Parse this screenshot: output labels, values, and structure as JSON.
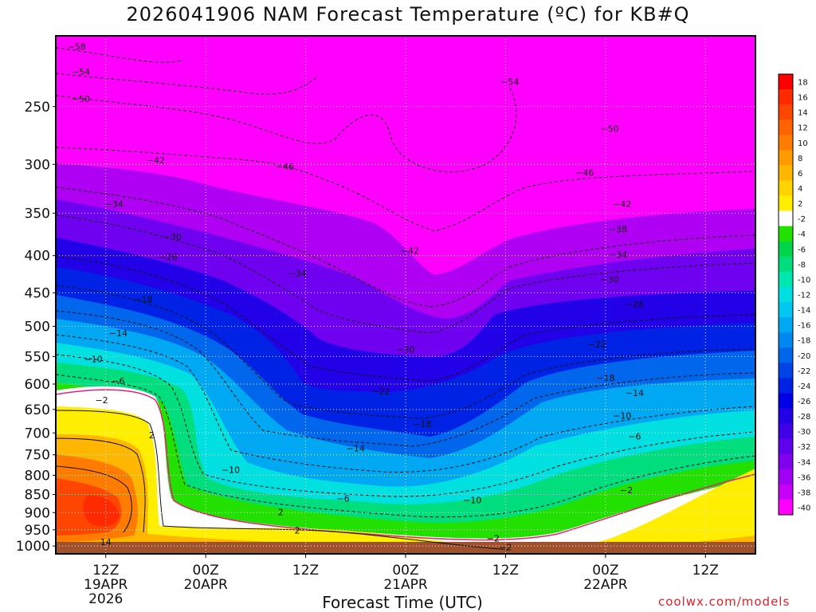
{
  "title": "2026041906 NAM Forecast Temperature (ºC) for KB#Q",
  "xlabel": "Forecast Time (UTC)",
  "credit": "coolwx.com/models",
  "chart_data": {
    "type": "heatmap",
    "title": "2026041906 NAM Forecast Temperature (ºC) for KB#Q",
    "xlabel": "Forecast Time (UTC)",
    "ylabel": "",
    "y_scale": "log",
    "y_reversed": true,
    "ylim": [
      1025,
      200
    ],
    "y_ticks": [
      250,
      300,
      350,
      400,
      450,
      500,
      550,
      600,
      650,
      700,
      750,
      800,
      850,
      900,
      950,
      1000
    ],
    "x_ticks": [
      {
        "label": "12Z",
        "sub": [
          "19APR",
          "2026"
        ],
        "hour": 6
      },
      {
        "label": "00Z",
        "sub": [
          "20APR"
        ],
        "hour": 18
      },
      {
        "label": "12Z",
        "sub": [],
        "hour": 30
      },
      {
        "label": "00Z",
        "sub": [
          "21APR"
        ],
        "hour": 42
      },
      {
        "label": "12Z",
        "sub": [],
        "hour": 54
      },
      {
        "label": "00Z",
        "sub": [
          "22APR"
        ],
        "hour": 66
      },
      {
        "label": "12Z",
        "sub": [],
        "hour": 78
      }
    ],
    "xlim_hours": [
      0,
      84
    ],
    "grid": "dotted",
    "colorbar": {
      "labels": [
        "18",
        "16",
        "14",
        "12",
        "10",
        "8",
        "6",
        "4",
        "2",
        "-2",
        "-4",
        "-6",
        "-8",
        "-10",
        "-12",
        "-14",
        "-16",
        "-18",
        "-20",
        "-22",
        "-24",
        "-26",
        "-28",
        "-30",
        "-32",
        "-34",
        "-36",
        "-38",
        "-40"
      ],
      "colors": [
        "#ff0000",
        "#ff2a00",
        "#ff4600",
        "#ff6200",
        "#ff7c00",
        "#ff9a00",
        "#ffb600",
        "#ffd400",
        "#ffee00",
        "#ffffff",
        "#22e000",
        "#00d54a",
        "#00dd7c",
        "#00e8b0",
        "#00e0e0",
        "#00c8f0",
        "#00a8f4",
        "#0088f0",
        "#0066ec",
        "#0044e8",
        "#0022e4",
        "#0000e8",
        "#2200e8",
        "#4000e8",
        "#6000ec",
        "#8000f0",
        "#a000f4",
        "#c800f8",
        "#ff00ff"
      ]
    },
    "isotherm_levels": [
      -58,
      -54,
      -50,
      -46,
      -42,
      -38,
      -34,
      -30,
      -26,
      -22,
      -18,
      -14,
      -10,
      -6,
      -2,
      2,
      6,
      10,
      14
    ],
    "labels": [
      {
        "text": "-58",
        "hour": 2.5,
        "p": 207
      },
      {
        "text": "-54",
        "hour": 3,
        "p": 224
      },
      {
        "text": "-50",
        "hour": 3,
        "p": 244
      },
      {
        "text": "-54",
        "hour": 54.5,
        "p": 231
      },
      {
        "text": "-50",
        "hour": 66.5,
        "p": 268
      },
      {
        "text": "-46",
        "hour": 27.5,
        "p": 302
      },
      {
        "text": "-46",
        "hour": 63.5,
        "p": 308
      },
      {
        "text": "-42",
        "hour": 12,
        "p": 296
      },
      {
        "text": "-42",
        "hour": 42.5,
        "p": 394
      },
      {
        "text": "-42",
        "hour": 68,
        "p": 340
      },
      {
        "text": "-38",
        "hour": 67.5,
        "p": 368
      },
      {
        "text": "-34",
        "hour": 7,
        "p": 340
      },
      {
        "text": "-34",
        "hour": 29,
        "p": 423
      },
      {
        "text": "-34",
        "hour": 67.5,
        "p": 399
      },
      {
        "text": "-30",
        "hour": 14,
        "p": 377
      },
      {
        "text": "-30",
        "hour": 42,
        "p": 538
      },
      {
        "text": "-30",
        "hour": 66.5,
        "p": 431
      },
      {
        "text": "-26",
        "hour": 13.5,
        "p": 402
      },
      {
        "text": "-26",
        "hour": 69.5,
        "p": 466
      },
      {
        "text": "-22",
        "hour": 39,
        "p": 614
      },
      {
        "text": "-22",
        "hour": 65,
        "p": 529
      },
      {
        "text": "-18",
        "hour": 10.5,
        "p": 459
      },
      {
        "text": "-18",
        "hour": 44,
        "p": 680
      },
      {
        "text": "-18",
        "hour": 66,
        "p": 588
      },
      {
        "text": "-14",
        "hour": 7.5,
        "p": 511
      },
      {
        "text": "-14",
        "hour": 36,
        "p": 735
      },
      {
        "text": "-14",
        "hour": 69.5,
        "p": 617
      },
      {
        "text": "-10",
        "hour": 4.5,
        "p": 554
      },
      {
        "text": "-10",
        "hour": 21,
        "p": 786
      },
      {
        "text": "-10",
        "hour": 50,
        "p": 865
      },
      {
        "text": "-10",
        "hour": 68,
        "p": 663
      },
      {
        "text": "-6",
        "hour": 7.5,
        "p": 594
      },
      {
        "text": "-6",
        "hour": 34.5,
        "p": 861
      },
      {
        "text": "-6",
        "hour": 69.5,
        "p": 707
      },
      {
        "text": "-2",
        "hour": 5.5,
        "p": 631
      },
      {
        "text": "-2",
        "hour": 52.5,
        "p": 976
      },
      {
        "text": "-2",
        "hour": 54,
        "p": 1003
      },
      {
        "text": "-2",
        "hour": 68.5,
        "p": 838
      },
      {
        "text": "2",
        "hour": 11.5,
        "p": 705
      },
      {
        "text": "2",
        "hour": 27,
        "p": 898
      },
      {
        "text": "2",
        "hour": 29,
        "p": 952
      },
      {
        "text": "14",
        "hour": 6,
        "p": 987
      }
    ]
  }
}
